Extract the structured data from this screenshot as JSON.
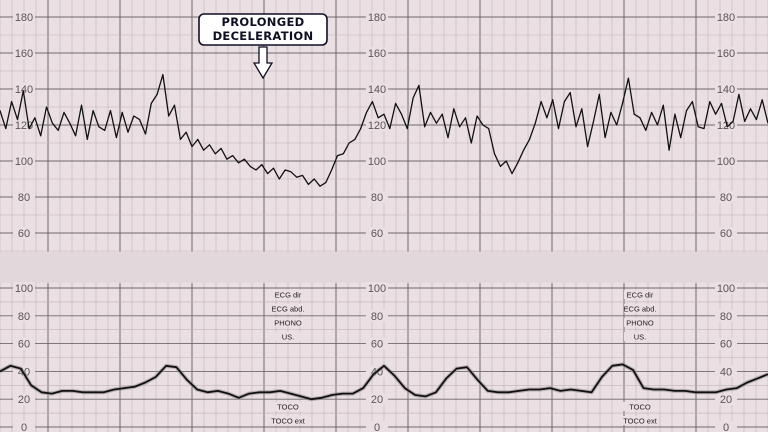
{
  "colors": {
    "paper": "#eadfe3",
    "band": "#e2d7db",
    "grid_minor": "#c2b3b9",
    "grid_major": "#6f6a6d",
    "trace": "#111111",
    "callout_border": "#0e0f23"
  },
  "callout": {
    "line1": "PROLONGED",
    "line2": "DECELERATION"
  },
  "chart_data": [
    {
      "type": "line",
      "title": "",
      "xlabel": "",
      "ylabel": "",
      "ylim": [
        50,
        190
      ],
      "y_ticks": [
        "60",
        "80",
        "100",
        "120",
        "140",
        "160",
        "180"
      ],
      "grid": true,
      "series": [
        {
          "values": [
            128,
            118,
            133,
            123,
            139,
            118,
            124,
            114,
            130,
            121,
            117,
            127,
            121,
            114,
            131,
            112,
            128,
            119,
            117,
            128,
            113,
            127,
            116,
            125,
            123,
            115,
            132,
            137,
            148,
            125,
            131,
            112,
            116,
            108,
            112,
            106,
            109,
            104,
            107,
            101,
            103,
            99,
            101,
            97,
            95,
            98,
            93,
            96,
            90,
            95,
            94,
            91,
            92,
            87,
            90,
            86,
            88,
            95,
            103,
            104,
            110,
            112,
            118,
            127,
            133,
            124,
            126,
            118,
            132,
            126,
            118,
            135,
            142,
            119,
            127,
            121,
            126,
            113,
            129,
            119,
            124,
            110,
            125,
            120,
            118,
            104,
            97,
            100,
            93,
            99,
            106,
            112,
            121,
            133,
            124,
            134,
            118,
            133,
            138,
            119,
            129,
            108,
            122,
            137,
            113,
            127,
            120,
            132,
            146,
            126,
            124,
            117,
            127,
            120,
            131,
            106,
            126,
            113,
            128,
            133,
            119,
            118,
            133,
            126,
            132,
            119,
            122,
            137,
            122,
            129,
            123,
            134,
            121
          ]
        }
      ],
      "mode_labels": [
        "ECG dir",
        "ECG abd.",
        "PHONO",
        "US."
      ],
      "mode_labels_bottom": [
        "TOCO",
        "TOCO ext"
      ]
    },
    {
      "type": "line",
      "title": "",
      "xlabel": "",
      "ylabel": "",
      "ylim": [
        0,
        100
      ],
      "y_ticks": [
        "0",
        "20",
        "40",
        "60",
        "80",
        "100"
      ],
      "grid": true,
      "series": [
        {
          "values": [
            40,
            44,
            42,
            30,
            25,
            24,
            26,
            26,
            25,
            25,
            25,
            27,
            28,
            29,
            32,
            36,
            44,
            43,
            34,
            27,
            25,
            26,
            24,
            21,
            24,
            25,
            25,
            26,
            24,
            22,
            20,
            21,
            23,
            24,
            24,
            28,
            38,
            44,
            37,
            28,
            23,
            22,
            25,
            35,
            42,
            43,
            34,
            26,
            25,
            25,
            26,
            27,
            27,
            28,
            26,
            27,
            26,
            25,
            36,
            44,
            45,
            41,
            28,
            27,
            27,
            26,
            26,
            25,
            25,
            25,
            27,
            28,
            32,
            35,
            38
          ]
        }
      ]
    }
  ]
}
